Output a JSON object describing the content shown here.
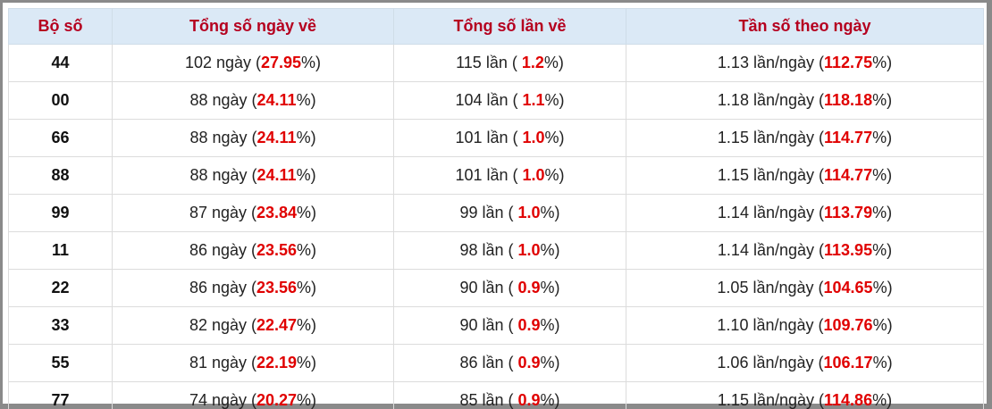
{
  "table": {
    "headers": [
      "Bộ số",
      "Tổng số ngày về",
      "Tổng số lần về",
      "Tần số theo ngày"
    ],
    "rows": [
      [
        "44",
        [
          "102 ngày (",
          "27.95",
          "%)"
        ],
        [
          "115 lần ( ",
          "1.2",
          "%)"
        ],
        [
          "1.13 lần/ngày (",
          "112.75",
          "%)"
        ]
      ],
      [
        "00",
        [
          "88 ngày (",
          "24.11",
          "%)"
        ],
        [
          "104 lần ( ",
          "1.1",
          "%)"
        ],
        [
          "1.18 lần/ngày (",
          "118.18",
          "%)"
        ]
      ],
      [
        "66",
        [
          "88 ngày (",
          "24.11",
          "%)"
        ],
        [
          "101 lần ( ",
          "1.0",
          "%)"
        ],
        [
          "1.15 lần/ngày (",
          "114.77",
          "%)"
        ]
      ],
      [
        "88",
        [
          "88 ngày (",
          "24.11",
          "%)"
        ],
        [
          "101 lần ( ",
          "1.0",
          "%)"
        ],
        [
          "1.15 lần/ngày (",
          "114.77",
          "%)"
        ]
      ],
      [
        "99",
        [
          "87 ngày (",
          "23.84",
          "%)"
        ],
        [
          "99 lần ( ",
          "1.0",
          "%)"
        ],
        [
          "1.14 lần/ngày (",
          "113.79",
          "%)"
        ]
      ],
      [
        "11",
        [
          "86 ngày (",
          "23.56",
          "%)"
        ],
        [
          "98 lần ( ",
          "1.0",
          "%)"
        ],
        [
          "1.14 lần/ngày (",
          "113.95",
          "%)"
        ]
      ],
      [
        "22",
        [
          "86 ngày (",
          "23.56",
          "%)"
        ],
        [
          "90 lần ( ",
          "0.9",
          "%)"
        ],
        [
          "1.05 lần/ngày (",
          "104.65",
          "%)"
        ]
      ],
      [
        "33",
        [
          "82 ngày (",
          "22.47",
          "%)"
        ],
        [
          "90 lần ( ",
          "0.9",
          "%)"
        ],
        [
          "1.10 lần/ngày (",
          "109.76",
          "%)"
        ]
      ],
      [
        "55",
        [
          "81 ngày (",
          "22.19",
          "%)"
        ],
        [
          "86 lần ( ",
          "0.9",
          "%)"
        ],
        [
          "1.06 lần/ngày (",
          "106.17",
          "%)"
        ]
      ],
      [
        "77",
        [
          "74 ngày (",
          "20.27",
          "%)"
        ],
        [
          "85 lần ( ",
          "0.9",
          "%)"
        ],
        [
          "1.15 lần/ngày (",
          "114.86",
          "%)"
        ]
      ]
    ]
  }
}
